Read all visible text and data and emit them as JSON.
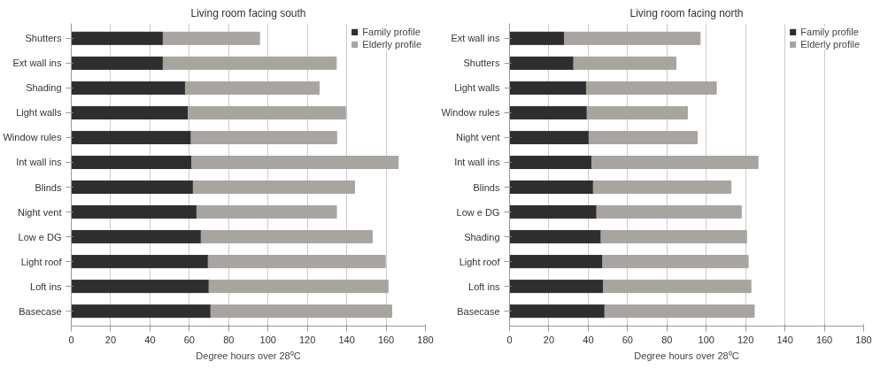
{
  "chart_data": [
    {
      "type": "bar",
      "orientation": "horizontal",
      "stacked": true,
      "title": "Living room facing south",
      "xlabel": "Degree hours over 28⁰C",
      "categories": [
        "Shutters",
        "Ext wall ins",
        "Shading",
        "Light walls",
        "Window rules",
        "Int wall ins",
        "Blinds",
        "Night vent",
        "Low e DG",
        "Light roof",
        "Loft ins",
        "Basecase"
      ],
      "series": [
        {
          "name": "Family profile",
          "color": "#2e2e2e",
          "values": [
            46.7,
            46.7,
            58,
            59.4,
            60.9,
            61.2,
            62,
            63.8,
            66,
            69.6,
            70,
            70.9
          ]
        },
        {
          "name": "Elderly profile",
          "color": "#a8a4a0",
          "values": [
            49,
            88,
            68,
            80,
            74,
            105,
            82,
            71,
            87,
            90,
            91,
            92
          ]
        }
      ],
      "xlim": [
        0,
        180
      ],
      "xticks": [
        0,
        20,
        40,
        60,
        80,
        100,
        120,
        140,
        160,
        180
      ],
      "grid": "x",
      "legend": "top right"
    },
    {
      "type": "bar",
      "orientation": "horizontal",
      "stacked": true,
      "title": "Living room facing north",
      "xlabel": "Degree hours over 28⁰C",
      "categories": [
        "Ext wall ins",
        "Shutters",
        "Light walls",
        "Window rules",
        "Night vent",
        "Int wall ins",
        "Blinds",
        "Low e DG",
        "Shading",
        "Light roof",
        "Loft ins",
        "Basecase"
      ],
      "series": [
        {
          "name": "Family profile",
          "color": "#2e2e2e",
          "values": [
            27.9,
            32.6,
            39.1,
            39.4,
            40.4,
            41.8,
            42.6,
            44.3,
            46.5,
            47.3,
            47.7,
            48.4
          ]
        },
        {
          "name": "Elderly profile",
          "color": "#a8a4a0",
          "values": [
            69,
            52,
            66,
            51,
            55,
            84.5,
            70,
            73.5,
            74,
            74,
            75,
            76
          ]
        }
      ],
      "xlim": [
        0,
        180
      ],
      "xticks": [
        0,
        20,
        40,
        60,
        80,
        100,
        120,
        140,
        160,
        180
      ],
      "grid": "x",
      "legend": "top right"
    }
  ]
}
